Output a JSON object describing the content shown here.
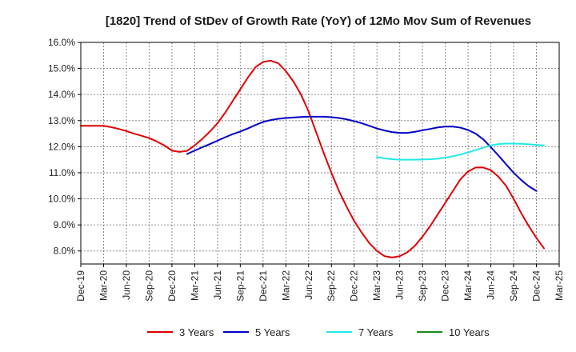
{
  "chart_data": {
    "type": "line",
    "title": "[1820]  Trend of StDev of Growth Rate (YoY) of 12Mo Mov Sum of Revenues",
    "xlabel": "",
    "ylabel": "",
    "ylim": [
      7.5,
      16.0
    ],
    "yticks": [
      8.0,
      9.0,
      10.0,
      11.0,
      12.0,
      13.0,
      14.0,
      15.0,
      16.0
    ],
    "ytick_labels": [
      "8.0%",
      "9.0%",
      "10.0%",
      "11.0%",
      "12.0%",
      "13.0%",
      "14.0%",
      "15.0%",
      "16.0%"
    ],
    "x_tick_labels": [
      "Dec-19",
      "Mar-20",
      "Jun-20",
      "Sep-20",
      "Dec-20",
      "Mar-21",
      "Jun-21",
      "Sep-21",
      "Dec-21",
      "Mar-22",
      "Jun-22",
      "Sep-22",
      "Dec-22",
      "Mar-23",
      "Jun-23",
      "Sep-23",
      "Dec-23",
      "Mar-24",
      "Jun-24",
      "Sep-24",
      "Dec-24",
      "Mar-25"
    ],
    "grid": true,
    "legend_position": "bottom",
    "series": [
      {
        "name": "3 Years",
        "color": "#e00000",
        "start_index": 0,
        "values": [
          12.8,
          12.8,
          12.8,
          12.8,
          12.75,
          12.68,
          12.6,
          12.5,
          12.42,
          12.33,
          12.2,
          12.05,
          11.85,
          11.8,
          11.84,
          12.05,
          12.3,
          12.58,
          12.9,
          13.3,
          13.75,
          14.2,
          14.65,
          15.05,
          15.25,
          15.3,
          15.2,
          14.9,
          14.5,
          14.0,
          13.35,
          12.55,
          11.75,
          11.0,
          10.3,
          9.7,
          9.15,
          8.7,
          8.3,
          8.0,
          7.8,
          7.75,
          7.8,
          7.95,
          8.2,
          8.55,
          8.95,
          9.4,
          9.85,
          10.3,
          10.75,
          11.05,
          11.2,
          11.2,
          11.1,
          10.85,
          10.5,
          10.0,
          9.45,
          8.95,
          8.5,
          8.1
        ]
      },
      {
        "name": "5 Years",
        "color": "#0000c8",
        "start_index": 14,
        "values": [
          11.72,
          11.85,
          11.98,
          12.1,
          12.23,
          12.36,
          12.48,
          12.58,
          12.7,
          12.83,
          12.95,
          13.02,
          13.07,
          13.1,
          13.12,
          13.14,
          13.15,
          13.15,
          13.15,
          13.13,
          13.1,
          13.05,
          12.98,
          12.9,
          12.8,
          12.7,
          12.62,
          12.56,
          12.53,
          12.53,
          12.57,
          12.63,
          12.68,
          12.74,
          12.77,
          12.77,
          12.73,
          12.64,
          12.5,
          12.28,
          11.98,
          11.66,
          11.33,
          11.0,
          10.72,
          10.48,
          10.3
        ]
      },
      {
        "name": "7 Years",
        "color": "#22e8e8",
        "start_index": 39,
        "values": [
          11.6,
          11.55,
          11.52,
          11.5,
          11.5,
          11.5,
          11.51,
          11.52,
          11.54,
          11.58,
          11.63,
          11.7,
          11.78,
          11.87,
          11.96,
          12.05,
          12.1,
          12.12,
          12.12,
          12.11,
          12.09,
          12.07,
          12.05
        ]
      },
      {
        "name": "10 Years",
        "color": "#1a8a1a",
        "start_index": 0,
        "values": []
      }
    ]
  }
}
